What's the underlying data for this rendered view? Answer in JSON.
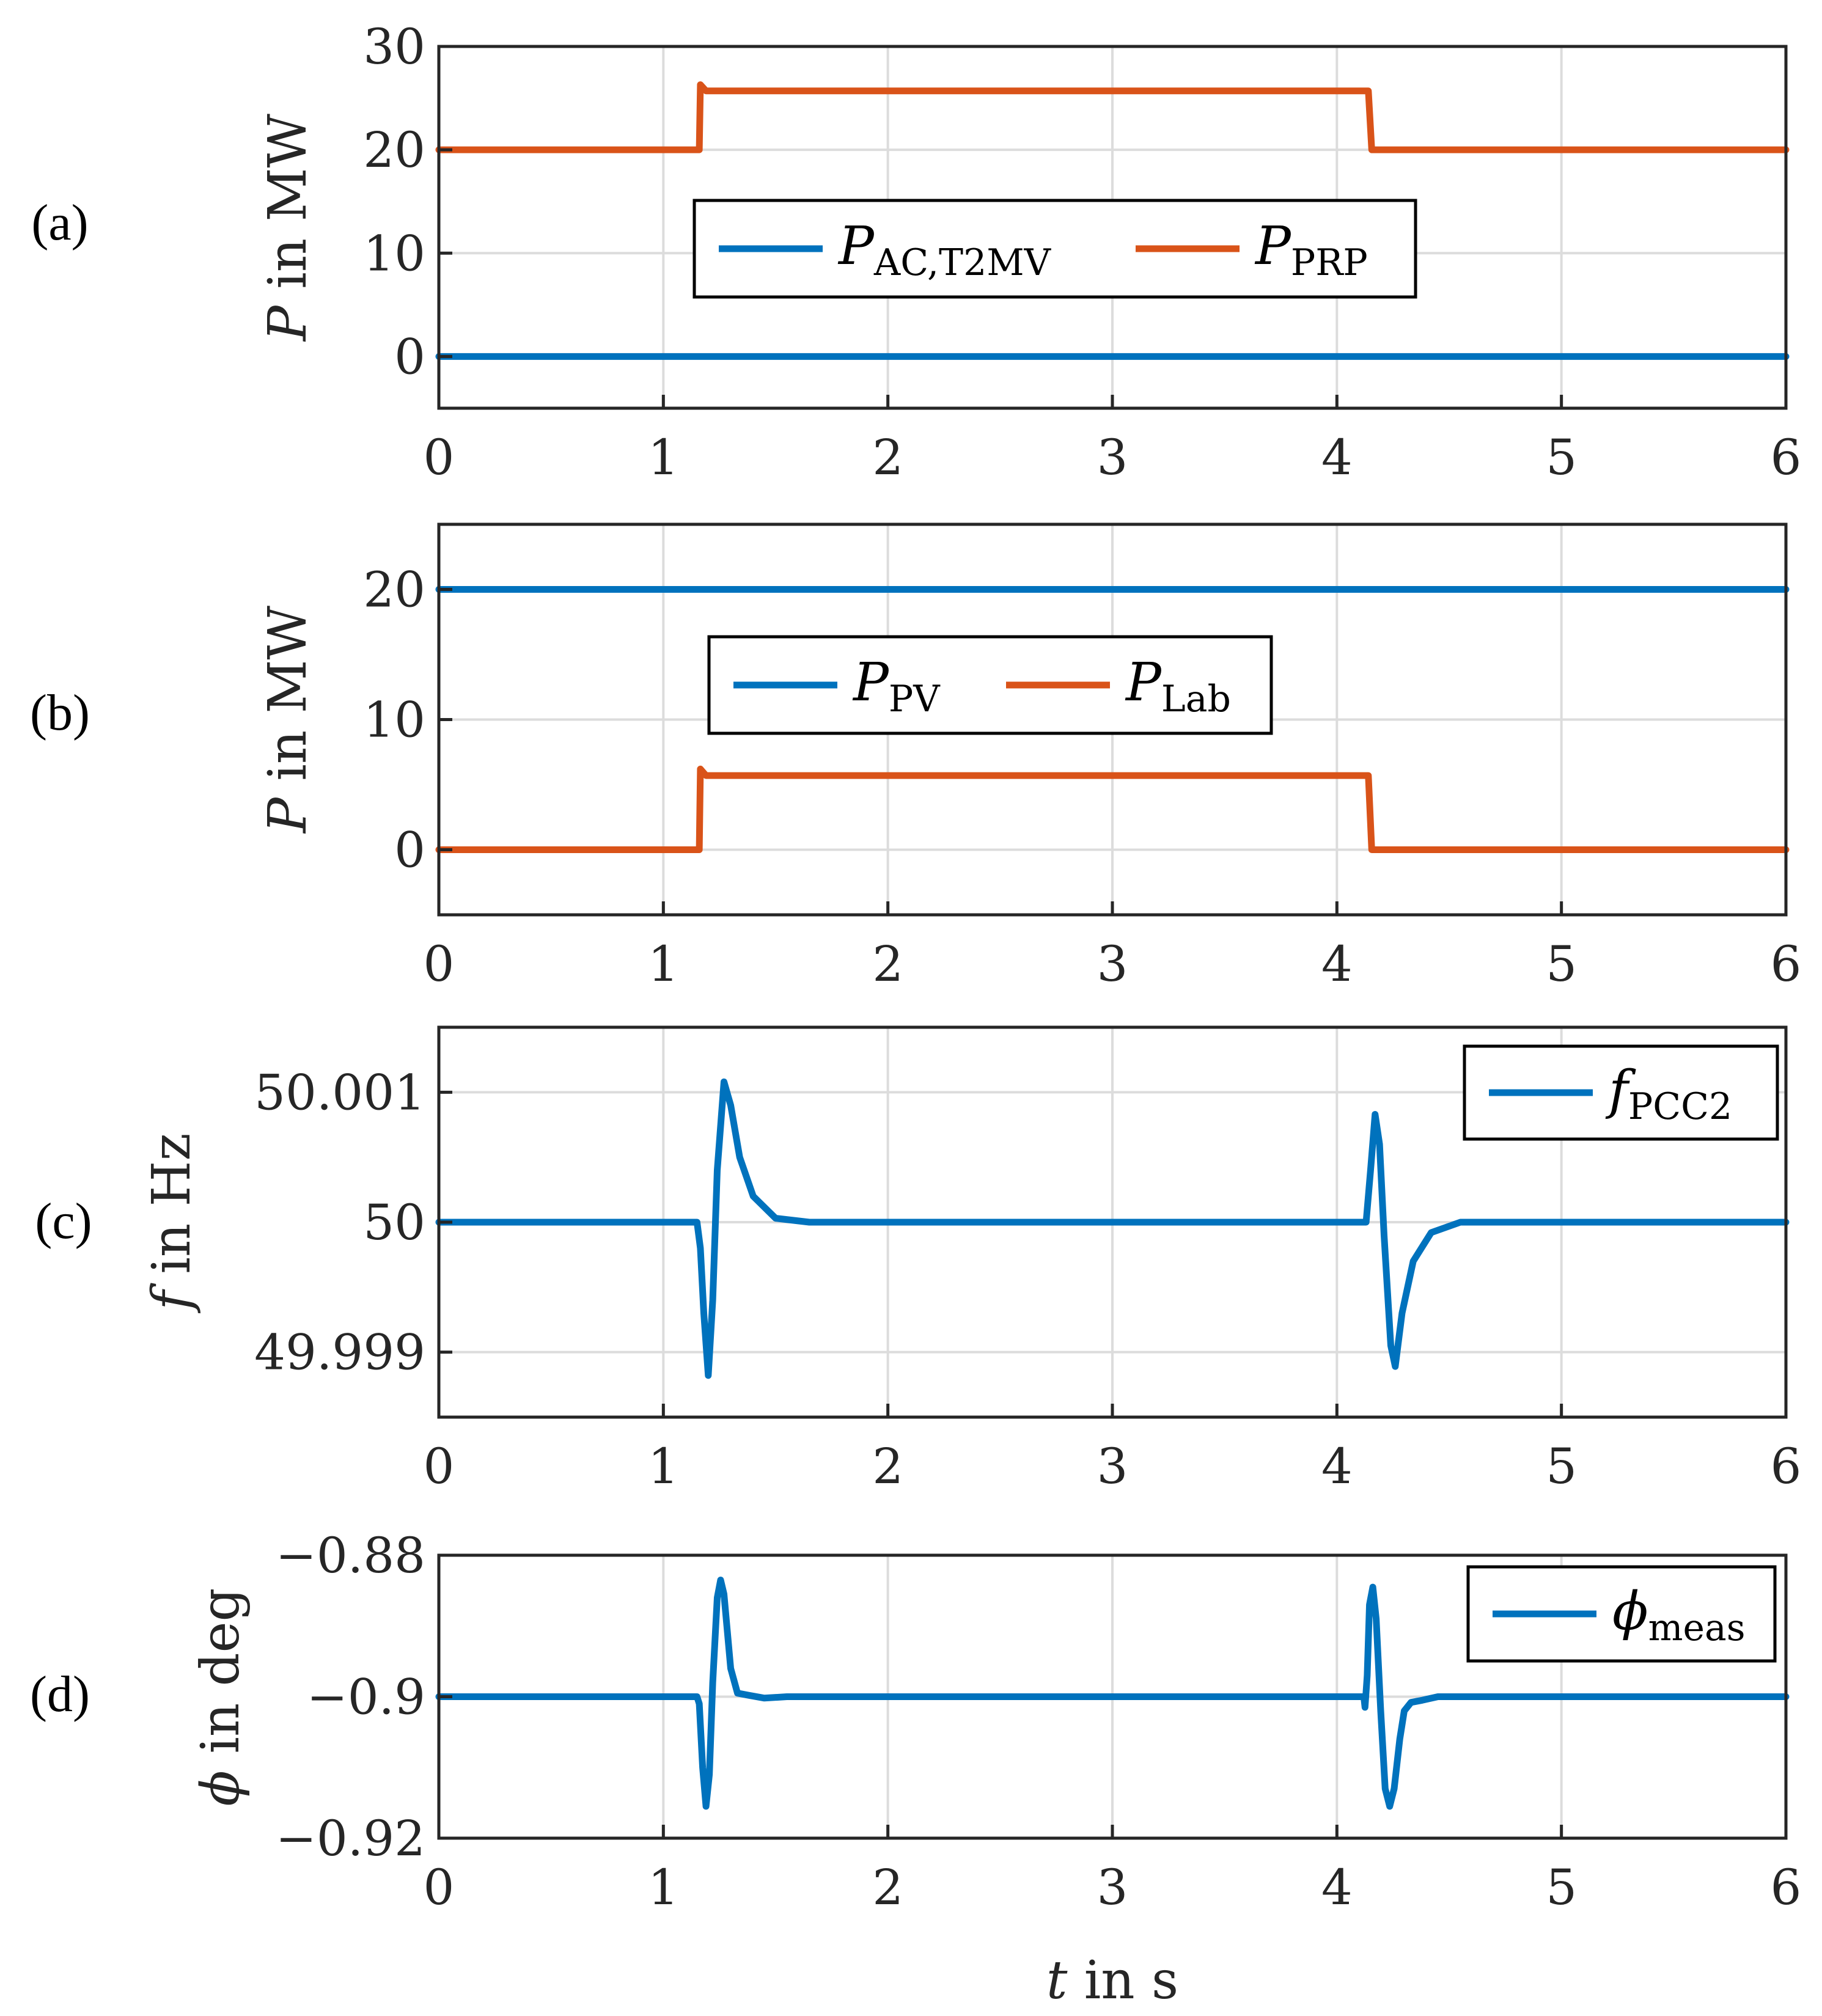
{
  "chart_data": [
    {
      "type": "line",
      "panel_label": "(a)",
      "ylabel": {
        "symbol": "P",
        "text": " in MW"
      },
      "xlim": [
        0,
        6
      ],
      "ylim": [
        -5,
        30
      ],
      "xticks": [
        0,
        1,
        2,
        3,
        4,
        5,
        6
      ],
      "xtick_labels": [
        "0",
        "1",
        "2",
        "3",
        "4",
        "5",
        "6"
      ],
      "yticks": [
        0,
        10,
        20,
        30
      ],
      "ytick_labels": [
        "0",
        "10",
        "20",
        "30"
      ],
      "grid": true,
      "legend_position": "center",
      "series": [
        {
          "name": "P_AC,T2MV",
          "symbol": "P",
          "subscript": "AC,T2MV",
          "color": "#0072BD",
          "points": [
            [
              0,
              0
            ],
            [
              6,
              0
            ]
          ]
        },
        {
          "name": "P_PRP",
          "symbol": "P",
          "subscript": "PRP",
          "color": "#D95319",
          "points": [
            [
              0,
              20
            ],
            [
              1.16,
              20
            ],
            [
              1.165,
              26.3
            ],
            [
              1.19,
              25.7
            ],
            [
              4.14,
              25.7
            ],
            [
              4.155,
              20
            ],
            [
              6,
              20
            ]
          ]
        }
      ]
    },
    {
      "type": "line",
      "panel_label": "(b)",
      "ylabel": {
        "symbol": "P",
        "text": " in MW"
      },
      "xlim": [
        0,
        6
      ],
      "ylim": [
        -5,
        25
      ],
      "xticks": [
        0,
        1,
        2,
        3,
        4,
        5,
        6
      ],
      "xtick_labels": [
        "0",
        "1",
        "2",
        "3",
        "4",
        "5",
        "6"
      ],
      "yticks": [
        0,
        10,
        20
      ],
      "ytick_labels": [
        "0",
        "10",
        "20"
      ],
      "grid": true,
      "legend_position": "center",
      "series": [
        {
          "name": "P_PV",
          "symbol": "P",
          "subscript": "PV",
          "color": "#0072BD",
          "points": [
            [
              0,
              20
            ],
            [
              6,
              20
            ]
          ]
        },
        {
          "name": "P_Lab",
          "symbol": "P",
          "subscript": "Lab",
          "color": "#D95319",
          "points": [
            [
              0,
              0
            ],
            [
              1.16,
              0
            ],
            [
              1.165,
              6.2
            ],
            [
              1.19,
              5.7
            ],
            [
              4.14,
              5.7
            ],
            [
              4.155,
              0
            ],
            [
              6,
              0
            ]
          ]
        }
      ]
    },
    {
      "type": "line",
      "panel_label": "(c)",
      "ylabel": {
        "symbol": "f",
        "text": " in Hz"
      },
      "xlim": [
        0,
        6
      ],
      "ylim": [
        49.9985,
        50.0015
      ],
      "xticks": [
        0,
        1,
        2,
        3,
        4,
        5,
        6
      ],
      "xtick_labels": [
        "0",
        "1",
        "2",
        "3",
        "4",
        "5",
        "6"
      ],
      "yticks": [
        49.999,
        50,
        50.001
      ],
      "ytick_labels": [
        "49.999",
        "50",
        "50.001"
      ],
      "grid": true,
      "legend_position": "top-right",
      "series": [
        {
          "name": "f_PCC2",
          "symbol": "f",
          "subscript": "PCC2",
          "color": "#0072BD",
          "points": [
            [
              0,
              50.0
            ],
            [
              1.15,
              50.0
            ],
            [
              1.165,
              49.9998
            ],
            [
              1.18,
              49.9993
            ],
            [
              1.2,
              49.99882
            ],
            [
              1.22,
              49.9994
            ],
            [
              1.24,
              50.0004
            ],
            [
              1.27,
              50.00108
            ],
            [
              1.3,
              50.0009
            ],
            [
              1.34,
              50.0005
            ],
            [
              1.4,
              50.0002
            ],
            [
              1.5,
              50.00003
            ],
            [
              1.65,
              50.0
            ],
            [
              4.13,
              50.0
            ],
            [
              4.15,
              50.0004
            ],
            [
              4.17,
              50.00083
            ],
            [
              4.19,
              50.0006
            ],
            [
              4.21,
              49.9999
            ],
            [
              4.24,
              49.99905
            ],
            [
              4.26,
              49.99889
            ],
            [
              4.29,
              49.9993
            ],
            [
              4.34,
              49.9997
            ],
            [
              4.42,
              49.99992
            ],
            [
              4.55,
              50.0
            ],
            [
              6,
              50.0
            ]
          ]
        }
      ]
    },
    {
      "type": "line",
      "panel_label": "(d)",
      "ylabel": {
        "symbol": "ϕ",
        "text": " in deg"
      },
      "xlim": [
        0,
        6
      ],
      "ylim": [
        -0.92,
        -0.88
      ],
      "xticks": [
        0,
        1,
        2,
        3,
        4,
        5,
        6
      ],
      "xtick_labels": [
        "0",
        "1",
        "2",
        "3",
        "4",
        "5",
        "6"
      ],
      "yticks": [
        -0.92,
        -0.9,
        -0.88
      ],
      "ytick_labels": [
        "−0.92",
        "−0.9",
        "−0.88"
      ],
      "grid": true,
      "legend_position": "top-right",
      "xlabel": {
        "symbol": "t",
        "text": " in s"
      },
      "series": [
        {
          "name": "phi_meas",
          "symbol": "ϕ",
          "subscript": "meas",
          "color": "#0072BD",
          "points": [
            [
              0,
              -0.9
            ],
            [
              1.15,
              -0.9
            ],
            [
              1.16,
              -0.901
            ],
            [
              1.175,
              -0.91
            ],
            [
              1.19,
              -0.9155
            ],
            [
              1.205,
              -0.911
            ],
            [
              1.22,
              -0.898
            ],
            [
              1.24,
              -0.886
            ],
            [
              1.255,
              -0.8835
            ],
            [
              1.27,
              -0.8855
            ],
            [
              1.3,
              -0.896
            ],
            [
              1.33,
              -0.8995
            ],
            [
              1.38,
              -0.8998
            ],
            [
              1.45,
              -0.9002
            ],
            [
              1.55,
              -0.9
            ],
            [
              4.12,
              -0.9
            ],
            [
              4.125,
              -0.9015
            ],
            [
              4.135,
              -0.897
            ],
            [
              4.145,
              -0.887
            ],
            [
              4.16,
              -0.8845
            ],
            [
              4.175,
              -0.889
            ],
            [
              4.195,
              -0.902
            ],
            [
              4.215,
              -0.913
            ],
            [
              4.235,
              -0.9155
            ],
            [
              4.255,
              -0.913
            ],
            [
              4.28,
              -0.906
            ],
            [
              4.3,
              -0.902
            ],
            [
              4.33,
              -0.9008
            ],
            [
              4.38,
              -0.9005
            ],
            [
              4.45,
              -0.9
            ],
            [
              6,
              -0.9
            ]
          ]
        }
      ]
    }
  ]
}
